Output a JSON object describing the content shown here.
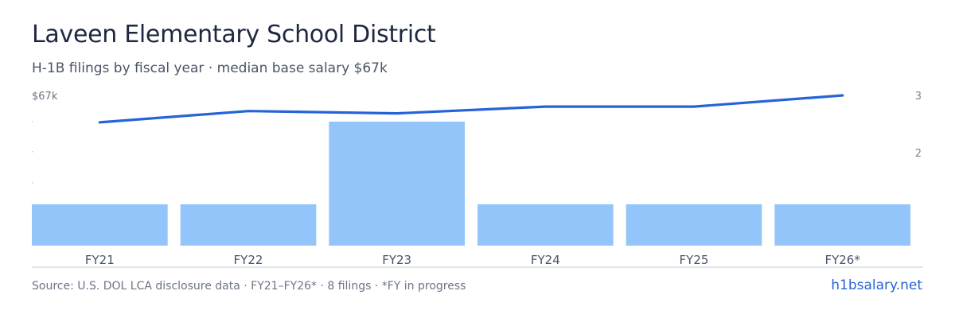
{
  "header": {
    "title": "Laveen Elementary School District",
    "subtitle": "H-1B filings by fiscal year · median base salary $67k"
  },
  "chart_data": {
    "type": "bar",
    "categories": [
      "FY21",
      "FY22",
      "FY23",
      "FY24",
      "FY25",
      "FY26*"
    ],
    "series": [
      {
        "kind": "bar",
        "axis": "right",
        "values": [
          1,
          1,
          3,
          1,
          1,
          1
        ]
      },
      {
        "kind": "line",
        "axis": "left",
        "values": [
          55,
          60,
          59,
          62,
          62,
          67
        ]
      }
    ],
    "left_axis": {
      "top_label": "$67k",
      "max": 67
    },
    "right_axis": {
      "ticks": [
        "3",
        "2"
      ]
    },
    "grid": false,
    "colors": {
      "bar": "#93c5fa",
      "line": "#2763d8"
    }
  },
  "footer": {
    "source": "Source: U.S. DOL LCA disclosure data · FY21–FY26* · 8 filings · *FY in progress",
    "site": "h1bsalary.net"
  }
}
